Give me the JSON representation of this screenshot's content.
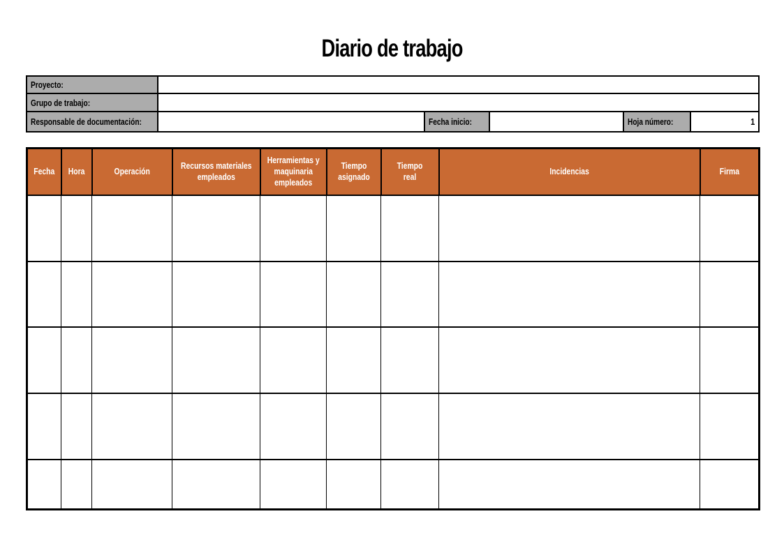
{
  "title": "Diario de trabajo",
  "header_fields": {
    "proyecto": {
      "label": "Proyecto:",
      "value": ""
    },
    "grupo_de_trabajo": {
      "label": "Grupo de trabajo:",
      "value": ""
    },
    "responsable": {
      "label": "Responsable de documentación:",
      "value": ""
    },
    "fecha_inicio": {
      "label": "Fecha inicio:",
      "value": ""
    },
    "hoja_numero": {
      "label": "Hoja número:",
      "value": "1"
    }
  },
  "table": {
    "columns": [
      "Fecha",
      "Hora",
      "Operación",
      "Recursos materiales empleados",
      "Herramientas y maquinaria empleados",
      "Tiempo asignado",
      "Tiempo real",
      "Incidencias",
      "Firma"
    ],
    "rows": [
      [
        "",
        "",
        "",
        "",
        "",
        "",
        "",
        "",
        ""
      ],
      [
        "",
        "",
        "",
        "",
        "",
        "",
        "",
        "",
        ""
      ],
      [
        "",
        "",
        "",
        "",
        "",
        "",
        "",
        "",
        ""
      ],
      [
        "",
        "",
        "",
        "",
        "",
        "",
        "",
        "",
        ""
      ],
      [
        "",
        "",
        "",
        "",
        "",
        "",
        "",
        "",
        ""
      ]
    ]
  },
  "colors": {
    "accent_orange": "#C96A33",
    "label_gray": "#ACACAC",
    "border_black": "#000000",
    "header_text": "#FFFFFF",
    "page_background": "#FFFFFF"
  }
}
